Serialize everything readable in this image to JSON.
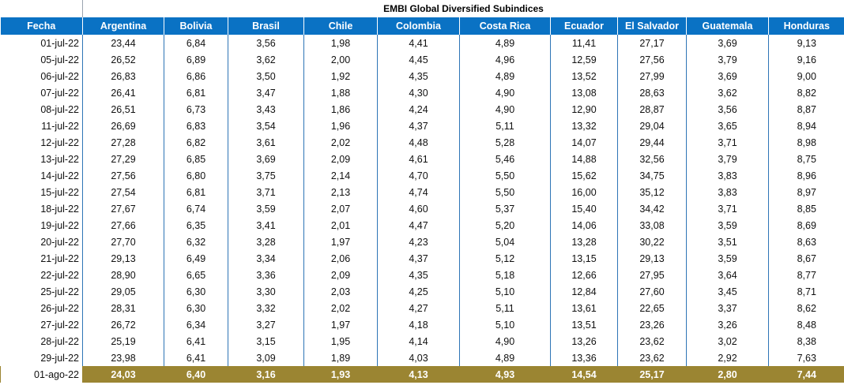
{
  "supertitle": "EMBI Global Diversified Subindices",
  "headers": [
    "Fecha",
    "Argentina",
    "Bolivia",
    "Brasil",
    "Chile",
    "Colombia",
    "Costa Rica",
    "Ecuador",
    "El Salvador",
    "Guatemala",
    "Honduras"
  ],
  "rows": [
    [
      "01-jul-22",
      "23,44",
      "6,84",
      "3,56",
      "1,98",
      "4,41",
      "4,89",
      "11,41",
      "27,17",
      "3,69",
      "9,13"
    ],
    [
      "05-jul-22",
      "26,52",
      "6,89",
      "3,62",
      "2,00",
      "4,45",
      "4,96",
      "12,59",
      "27,56",
      "3,79",
      "9,16"
    ],
    [
      "06-jul-22",
      "26,83",
      "6,86",
      "3,50",
      "1,92",
      "4,35",
      "4,89",
      "13,52",
      "27,99",
      "3,69",
      "9,00"
    ],
    [
      "07-jul-22",
      "26,41",
      "6,81",
      "3,47",
      "1,88",
      "4,30",
      "4,90",
      "13,08",
      "28,63",
      "3,62",
      "8,82"
    ],
    [
      "08-jul-22",
      "26,51",
      "6,73",
      "3,43",
      "1,86",
      "4,24",
      "4,90",
      "12,90",
      "28,87",
      "3,56",
      "8,87"
    ],
    [
      "11-jul-22",
      "26,69",
      "6,83",
      "3,54",
      "1,96",
      "4,37",
      "5,11",
      "13,32",
      "29,04",
      "3,65",
      "8,94"
    ],
    [
      "12-jul-22",
      "27,28",
      "6,82",
      "3,61",
      "2,02",
      "4,48",
      "5,28",
      "14,07",
      "29,44",
      "3,71",
      "8,98"
    ],
    [
      "13-jul-22",
      "27,29",
      "6,85",
      "3,69",
      "2,09",
      "4,61",
      "5,46",
      "14,88",
      "32,56",
      "3,79",
      "8,75"
    ],
    [
      "14-jul-22",
      "27,56",
      "6,80",
      "3,75",
      "2,14",
      "4,70",
      "5,50",
      "15,62",
      "34,75",
      "3,83",
      "8,96"
    ],
    [
      "15-jul-22",
      "27,54",
      "6,81",
      "3,71",
      "2,13",
      "4,74",
      "5,50",
      "16,00",
      "35,12",
      "3,83",
      "8,97"
    ],
    [
      "18-jul-22",
      "27,67",
      "6,74",
      "3,59",
      "2,07",
      "4,60",
      "5,37",
      "15,40",
      "34,42",
      "3,71",
      "8,85"
    ],
    [
      "19-jul-22",
      "27,66",
      "6,35",
      "3,41",
      "2,01",
      "4,47",
      "5,20",
      "14,06",
      "33,08",
      "3,59",
      "8,69"
    ],
    [
      "20-jul-22",
      "27,70",
      "6,32",
      "3,28",
      "1,97",
      "4,23",
      "5,04",
      "13,28",
      "30,22",
      "3,51",
      "8,63"
    ],
    [
      "21-jul-22",
      "29,13",
      "6,49",
      "3,34",
      "2,06",
      "4,37",
      "5,12",
      "13,15",
      "29,13",
      "3,59",
      "8,67"
    ],
    [
      "22-jul-22",
      "28,90",
      "6,65",
      "3,36",
      "2,09",
      "4,35",
      "5,18",
      "12,66",
      "27,95",
      "3,64",
      "8,77"
    ],
    [
      "25-jul-22",
      "29,05",
      "6,30",
      "3,30",
      "2,03",
      "4,25",
      "5,10",
      "12,84",
      "27,60",
      "3,45",
      "8,71"
    ],
    [
      "26-jul-22",
      "28,31",
      "6,30",
      "3,32",
      "2,02",
      "4,27",
      "5,11",
      "13,61",
      "22,65",
      "3,37",
      "8,62"
    ],
    [
      "27-jul-22",
      "26,72",
      "6,34",
      "3,27",
      "1,97",
      "4,18",
      "5,10",
      "13,51",
      "23,26",
      "3,26",
      "8,48"
    ],
    [
      "28-jul-22",
      "25,19",
      "6,41",
      "3,15",
      "1,95",
      "4,14",
      "4,90",
      "13,26",
      "23,62",
      "3,02",
      "8,38"
    ],
    [
      "29-jul-22",
      "23,98",
      "6,41",
      "3,09",
      "1,89",
      "4,03",
      "4,89",
      "13,36",
      "23,62",
      "2,92",
      "7,63"
    ],
    [
      "01-ago-22",
      "24,03",
      "6,40",
      "3,16",
      "1,93",
      "4,13",
      "4,93",
      "14,54",
      "25,17",
      "2,80",
      "7,44"
    ]
  ],
  "colors": {
    "header_bg": "#0a72c4",
    "highlight_bg": "#9b8532",
    "grid_line": "#2e75b6"
  }
}
